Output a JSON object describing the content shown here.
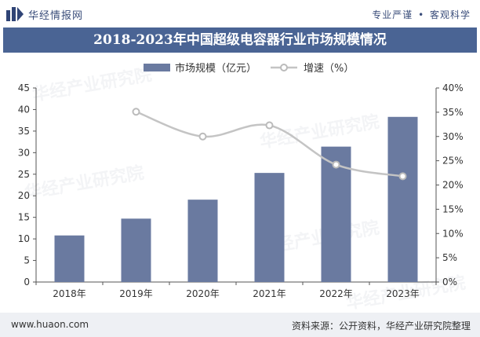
{
  "header": {
    "brand": "华经情报网",
    "slogan_left": "专业严谨",
    "slogan_dot": "•",
    "slogan_right": "客观科学"
  },
  "footer": {
    "site": "www.huaon.com",
    "source": "资料来源：公开资料，华经产业研究院整理"
  },
  "watermark": {
    "text": "华经产业研究院",
    "url": "www.huaon.com"
  },
  "colors": {
    "bar": "#6a7aa0",
    "line": "#c4c4c4",
    "title_bg": "#4a6494"
  },
  "chart_data": {
    "type": "bar",
    "title": "2018-2023年中国超级电容器行业市场规模情况",
    "categories": [
      "2018年",
      "2019年",
      "2020年",
      "2021年",
      "2022年",
      "2023年"
    ],
    "series": [
      {
        "name": "市场规模（亿元）",
        "type": "bar",
        "axis": "left",
        "values": [
          10.8,
          14.7,
          19.1,
          25.3,
          31.4,
          38.3
        ]
      },
      {
        "name": "增速（%）",
        "type": "line",
        "axis": "right",
        "values": [
          null,
          35.1,
          30.0,
          32.3,
          24.2,
          21.8
        ]
      }
    ],
    "y_left": {
      "ylim": [
        0,
        45
      ],
      "ticks": [
        "0",
        "5",
        "10",
        "15",
        "20",
        "25",
        "30",
        "35",
        "40",
        "45"
      ]
    },
    "y_right": {
      "ylim": [
        0,
        40
      ],
      "ticks": [
        "0%",
        "5%",
        "10%",
        "15%",
        "20%",
        "25%",
        "30%",
        "35%",
        "40%"
      ]
    },
    "legend_position": "top",
    "grid": false
  }
}
